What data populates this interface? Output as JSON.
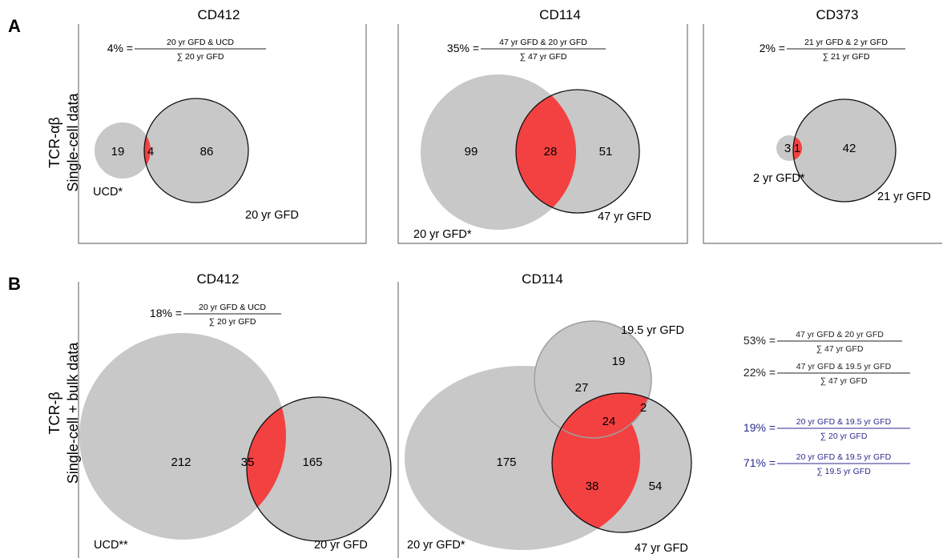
{
  "panel_a": {
    "letter": "A",
    "ylabel_line1": "TCR-αβ",
    "ylabel_line2": "Single-cell data",
    "cd412": {
      "title": "CD412",
      "pct": "4% =",
      "num": "20 yr GFD & UCD",
      "den": "∑ 20 yr GFD",
      "left_only": "19",
      "overlap": "4",
      "right_only": "86",
      "left_label": "UCD*",
      "right_label": "20 yr GFD"
    },
    "cd114": {
      "title": "CD114",
      "pct": "35% =",
      "num": "47 yr GFD & 20 yr GFD",
      "den": "∑ 47 yr GFD",
      "left_only": "99",
      "overlap": "28",
      "right_only": "51",
      "left_label": "20 yr GFD*",
      "right_label": "47 yr GFD"
    },
    "cd373": {
      "title": "CD373",
      "pct": "2% =",
      "num": "21 yr GFD & 2 yr GFD",
      "den": "∑ 21 yr GFD",
      "left_only": "3",
      "overlap": "1",
      "right_only": "42",
      "left_label": "2 yr GFD*",
      "right_label": "21 yr GFD"
    }
  },
  "panel_b": {
    "letter": "B",
    "ylabel_line1": "TCR-β",
    "ylabel_line2": "Single-cell + bulk data",
    "cd412": {
      "title": "CD412",
      "pct": "18% =",
      "num": "20 yr GFD & UCD",
      "den": "∑ 20 yr GFD",
      "left_only": "212",
      "overlap": "35",
      "right_only": "165",
      "left_label": "UCD**",
      "right_label": "20 yr GFD"
    },
    "cd114": {
      "title": "CD114",
      "a_only": "175",
      "b_only": "19",
      "c_only": "54",
      "ab": "27",
      "bc": "2",
      "ac": "38",
      "abc": "24",
      "a_label": "20 yr GFD*",
      "b_label": "19.5 yr GFD",
      "c_label": "47 yr GFD"
    },
    "fractions": [
      {
        "pct": "53% =",
        "num": "47 yr GFD & 20 yr GFD",
        "den": "∑ 47 yr GFD",
        "color": "#222222"
      },
      {
        "pct": "22% =",
        "num": "47 yr GFD & 19.5 yr GFD",
        "den": "∑ 47 yr GFD",
        "color": "#222222"
      },
      {
        "pct": "19% =",
        "num": "20 yr GFD & 19.5 yr GFD",
        "den": "∑ 20 yr GFD",
        "color": "#2b2b8f"
      },
      {
        "pct": "71% =",
        "num": "20 yr GFD & 19.5 yr GFD",
        "den": "∑ 19.5 yr GFD",
        "color": "#2b2b8f"
      }
    ]
  },
  "colors": {
    "set_fill": "#c8c8c8",
    "overlap_fill": "#f34141",
    "outline": "#111111",
    "inner_outline": "#9e9e9e"
  }
}
